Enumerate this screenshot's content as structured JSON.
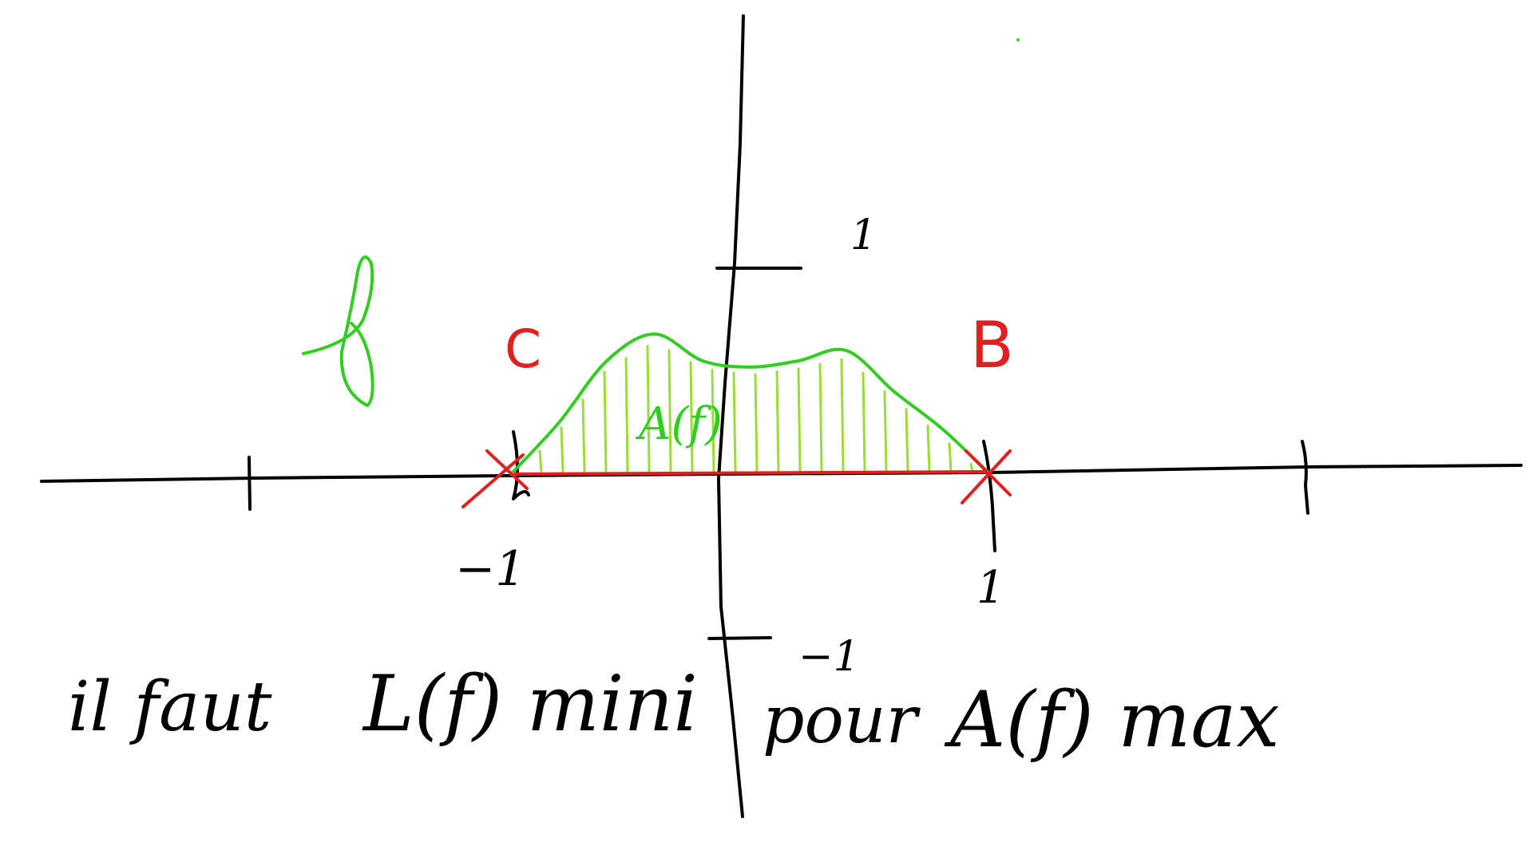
{
  "colors": {
    "axis": "#000000",
    "curve": "#33cc22",
    "hatch": "#99dd33",
    "segment": "#e02020",
    "points": "#e02020",
    "text": "#000000"
  },
  "labels": {
    "function_name": "f",
    "area_label": "A(f)",
    "point_c": "C",
    "point_b": "B",
    "tick_x_neg1": "−1",
    "tick_x_pos1": "1",
    "tick_y_pos1": "1",
    "tick_y_neg1": "−1"
  },
  "caption": {
    "part1": "il faut",
    "part2": "L(f) mini",
    "part3": "pour",
    "part4": "A(f) max"
  },
  "chart_data": {
    "type": "line",
    "series": [
      {
        "x": [
          -1,
          -0.8,
          -0.6,
          -0.4,
          -0.2,
          0,
          0.2,
          0.4,
          0.6,
          0.8,
          1
        ],
        "y": [
          0,
          0.25,
          0.55,
          0.68,
          0.55,
          0.52,
          0.55,
          0.6,
          0.4,
          0.22,
          0
        ]
      }
    ],
    "xlim": [
      -2,
      2
    ],
    "ylim": [
      -1,
      1.5
    ]
  }
}
